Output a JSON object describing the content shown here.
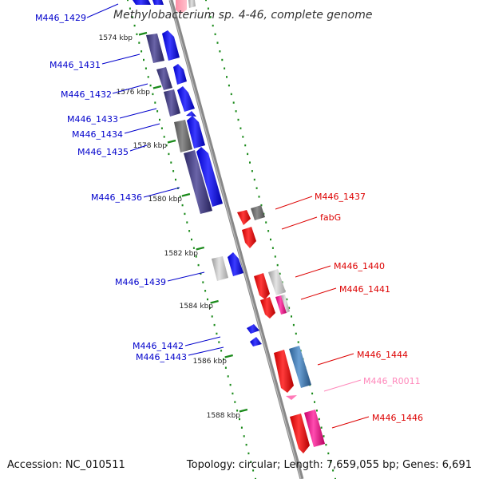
{
  "title": "Methylobacterium sp. 4-46, complete genome",
  "accession": "Accession: NC_010511",
  "summary": "Topology: circular; Length: 7,659,055 bp; Genes: 6,691",
  "colors": {
    "forward_label": "#0000cc",
    "reverse_label": "#dd0000",
    "rna_label": "#ff88bb",
    "forward_cds": "#1f1fff",
    "forward_gene": "#4a4484",
    "reverse_cds": "#ff1a1a",
    "reverse_gene_light": "#c0c0c0",
    "reverse_gene_pink": "#ff2aa0",
    "reverse_gene_blue": "#4f86c0",
    "backbone": "#888888",
    "ticks": "#1a8a1a"
  },
  "ticks": [
    "1574 kbp",
    "1576 kbp",
    "1578 kbp",
    "1580 kbp",
    "1582 kbp",
    "1584 kbp",
    "1586 kbp",
    "1588 kbp"
  ],
  "forward_genes": [
    "M446_1429",
    "M446_1431",
    "M446_1432",
    "M446_1433",
    "M446_1434",
    "M446_1435",
    "M446_1436",
    "M446_1439",
    "M446_1442",
    "M446_1443"
  ],
  "reverse_genes": [
    "M446_1437",
    "fabG",
    "M446_1440",
    "M446_1441",
    "M446_1444",
    "M446_R0011",
    "M446_1446"
  ]
}
